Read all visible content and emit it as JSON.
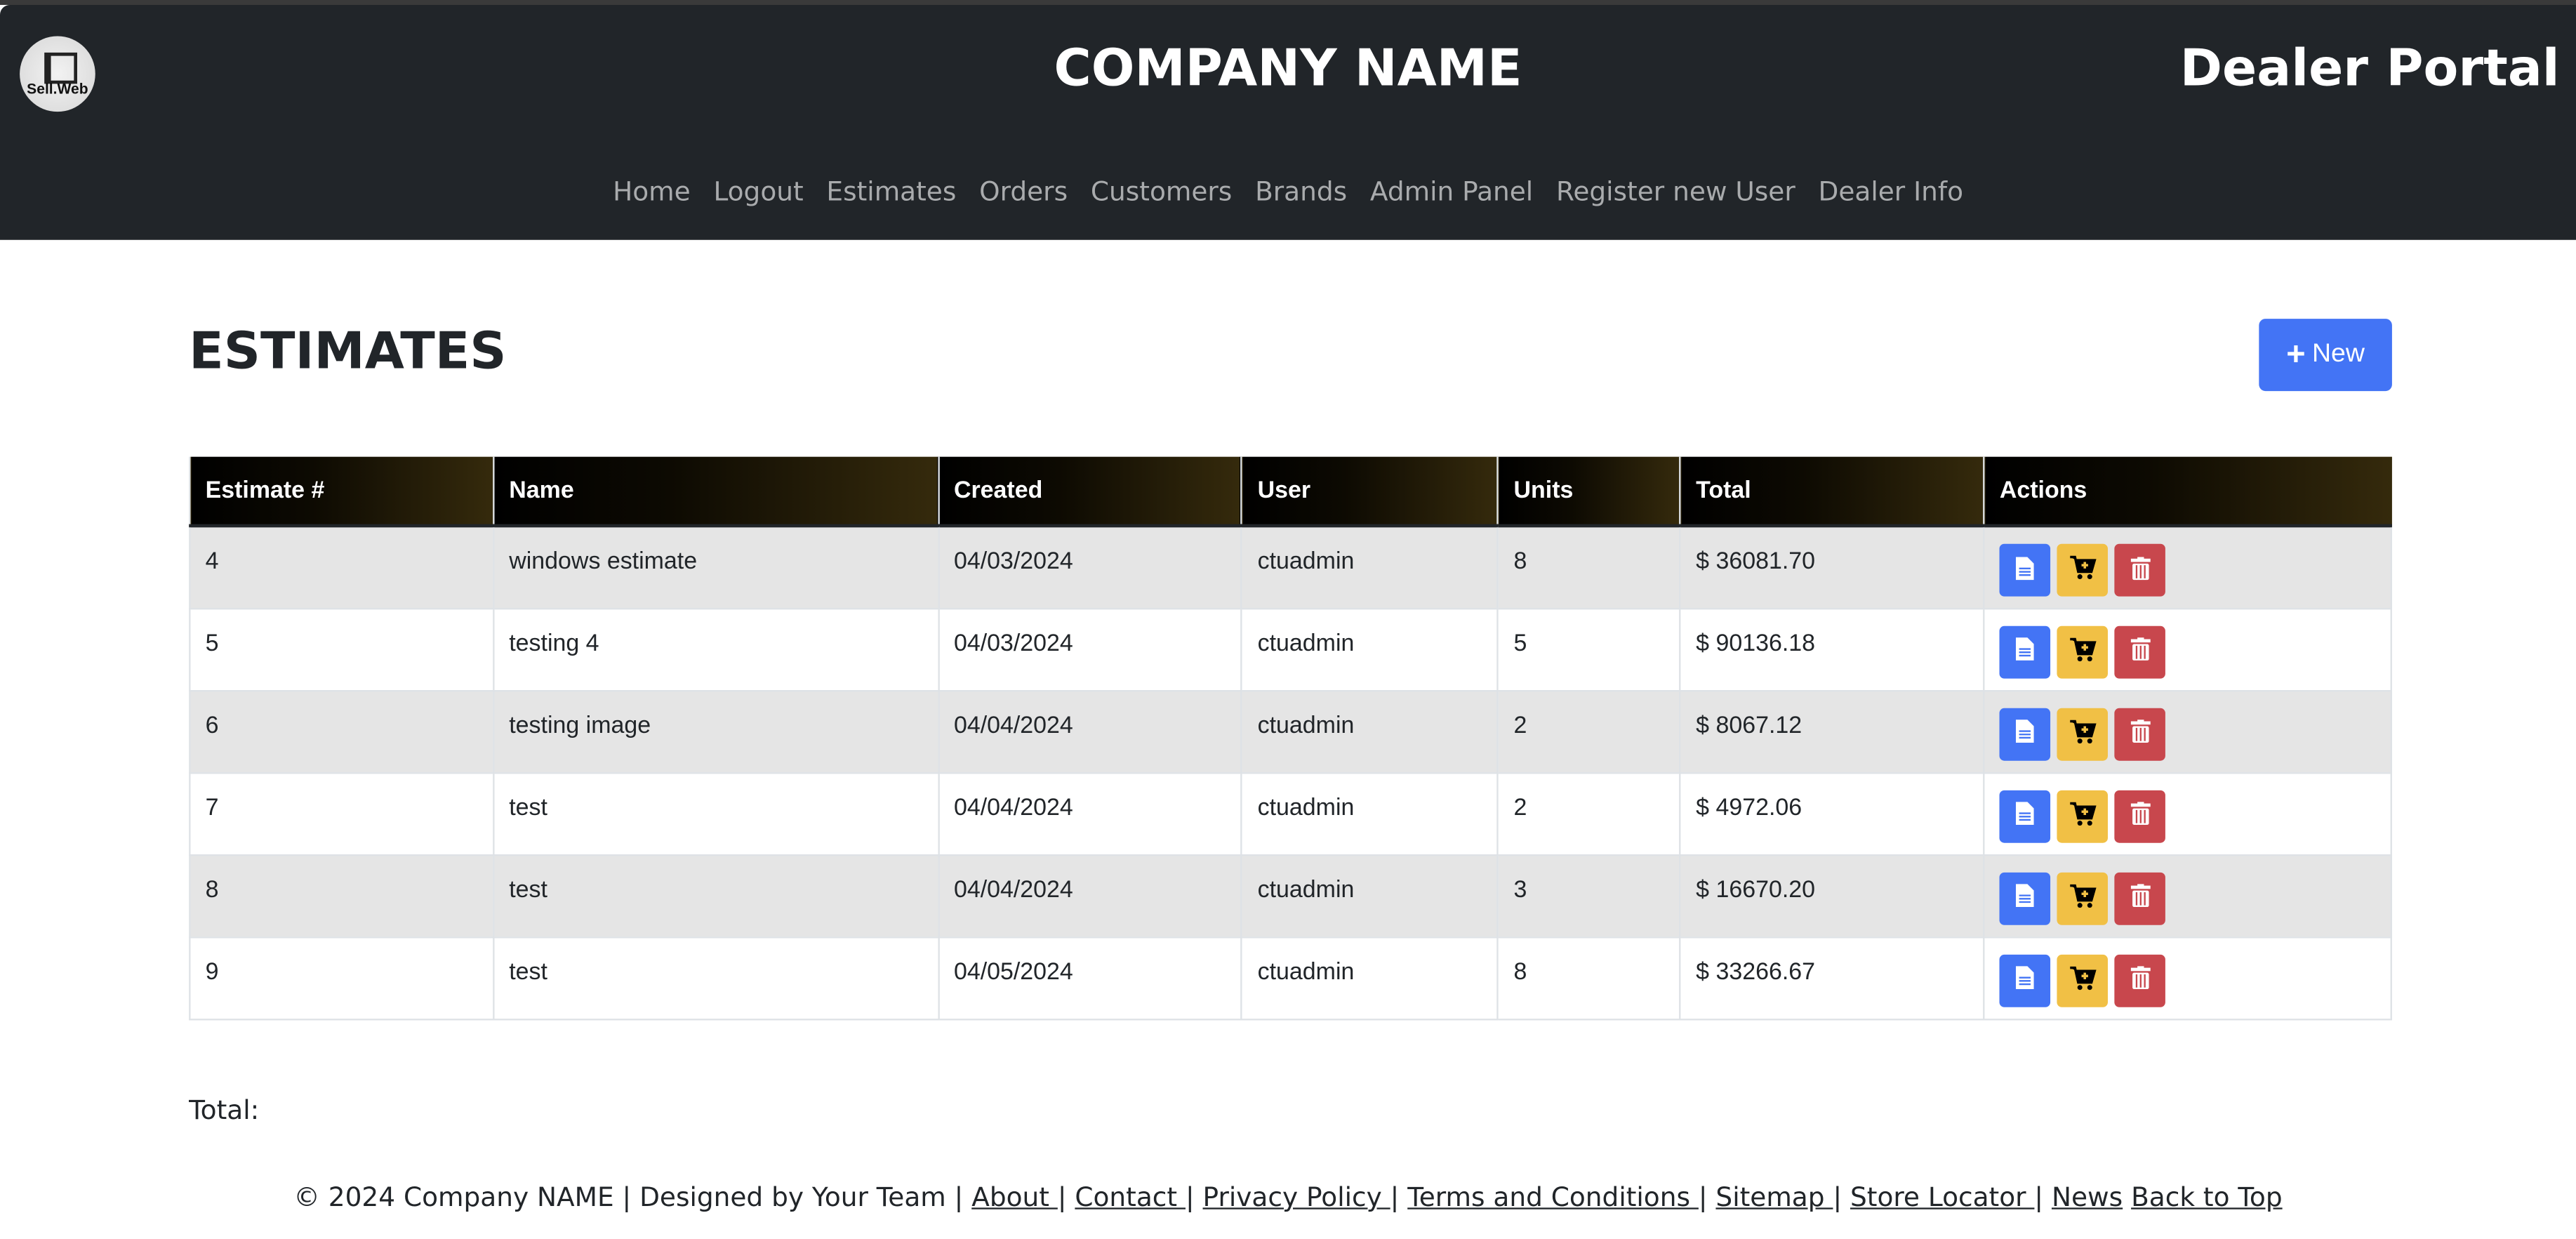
{
  "header": {
    "logo_text": "Sell.Web",
    "title": "COMPANY NAME",
    "portal": "Dealer Portal"
  },
  "nav": [
    "Home",
    "Logout",
    "Estimates",
    "Orders",
    "Customers",
    "Brands",
    "Admin Panel",
    "Register new User",
    "Dealer Info"
  ],
  "page": {
    "title": "ESTIMATES",
    "new_label": "New"
  },
  "table": {
    "columns": [
      "Estimate #",
      "Name",
      "Created",
      "User",
      "Units",
      "Total",
      "Actions"
    ],
    "rows": [
      [
        "4",
        "windows estimate",
        "04/03/2024",
        "ctuadmin",
        "8",
        "$ 36081.70"
      ],
      [
        "5",
        "testing 4",
        "04/03/2024",
        "ctuadmin",
        "5",
        "$ 90136.18"
      ],
      [
        "6",
        "testing image",
        "04/04/2024",
        "ctuadmin",
        "2",
        "$ 8067.12"
      ],
      [
        "7",
        "test",
        "04/04/2024",
        "ctuadmin",
        "2",
        "$ 4972.06"
      ],
      [
        "8",
        "test",
        "04/04/2024",
        "ctuadmin",
        "3",
        "$ 16670.20"
      ],
      [
        "9",
        "test",
        "04/05/2024",
        "ctuadmin",
        "8",
        "$ 33266.67"
      ]
    ],
    "action_icons": [
      "file-icon",
      "cart-plus-icon",
      "trash-icon"
    ]
  },
  "total_label": "Total:",
  "footer": {
    "text": "© 2024 Company NAME | Designed by Your Team | ",
    "links": [
      "About ",
      "Contact ",
      "Privacy Policy ",
      "Terms and Conditions ",
      "Sitemap ",
      "Store Locator ",
      "News"
    ],
    "back": "Back to Top"
  },
  "colors": {
    "header": "#212529",
    "primary": "#4374f5",
    "warning": "#f1c045",
    "danger": "#c8474d"
  }
}
